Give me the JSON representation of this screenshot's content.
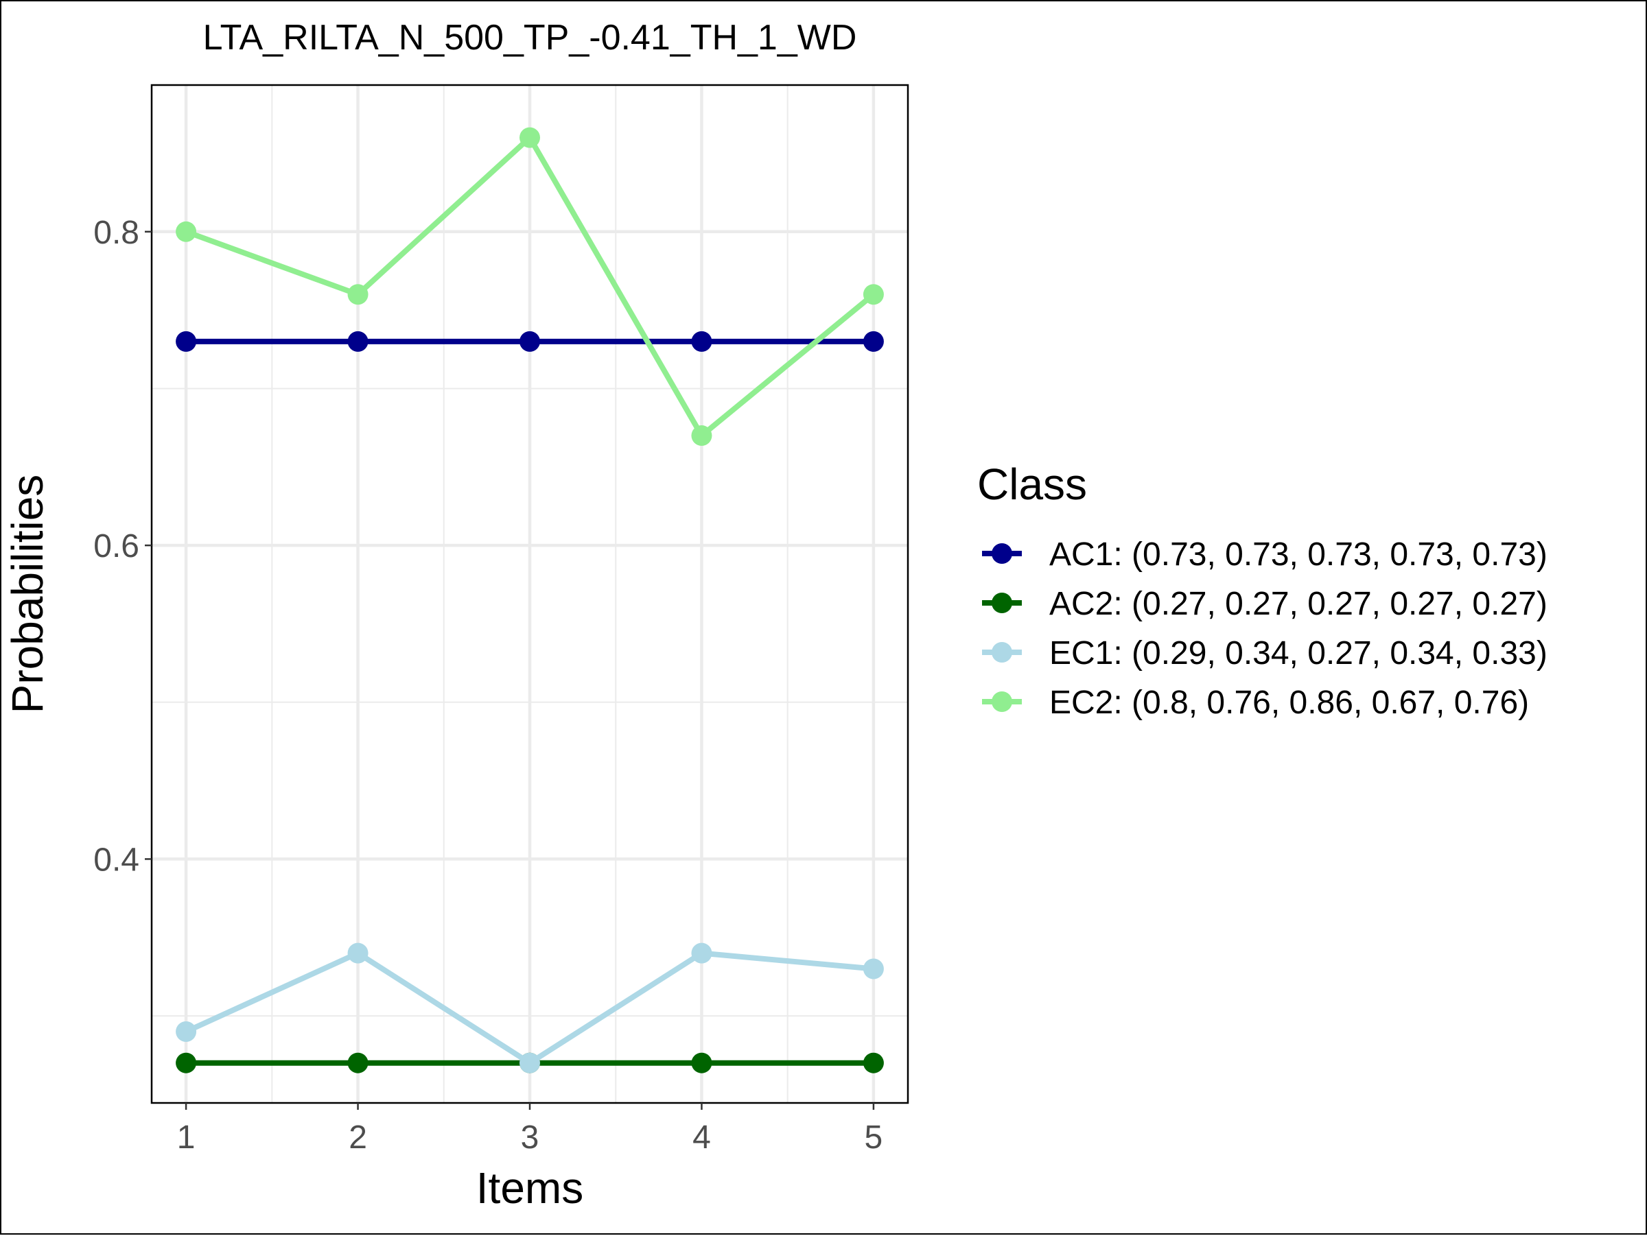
{
  "chart_data": {
    "type": "line",
    "title": "LTA_RILTA_N_500_TP_-0.41_TH_1_WD",
    "xlabel": "Items",
    "ylabel": "Probabilities",
    "categories": [
      "1",
      "2",
      "3",
      "4",
      "5"
    ],
    "x": [
      1,
      2,
      3,
      4,
      5
    ],
    "xlim": [
      0.8,
      5.2
    ],
    "ylim": [
      0.2445,
      0.8935
    ],
    "y_ticks": [
      0.4,
      0.6,
      0.8
    ],
    "y_tick_labels": [
      "0.4",
      "0.6",
      "0.8"
    ],
    "y_minor_ticks": [
      0.3,
      0.5,
      0.7
    ],
    "x_minor_ticks": [
      1.5,
      2.5,
      3.5,
      4.5
    ],
    "grid": true,
    "legend": {
      "title": "Class",
      "placement": "right"
    },
    "series": [
      {
        "name": "AC1",
        "label": "AC1: (0.73, 0.73, 0.73, 0.73, 0.73)",
        "color": "#00008B",
        "values": [
          0.73,
          0.73,
          0.73,
          0.73,
          0.73
        ]
      },
      {
        "name": "AC2",
        "label": "AC2: (0.27, 0.27, 0.27, 0.27, 0.27)",
        "color": "#006400",
        "values": [
          0.27,
          0.27,
          0.27,
          0.27,
          0.27
        ]
      },
      {
        "name": "EC1",
        "label": "EC1: (0.29, 0.34, 0.27, 0.34, 0.33)",
        "color": "#ADD8E6",
        "values": [
          0.29,
          0.34,
          0.27,
          0.34,
          0.33
        ]
      },
      {
        "name": "EC2",
        "label": "EC2: (0.8, 0.76, 0.86, 0.67, 0.76)",
        "color": "#90EE90",
        "values": [
          0.8,
          0.76,
          0.86,
          0.67,
          0.76
        ]
      }
    ]
  }
}
